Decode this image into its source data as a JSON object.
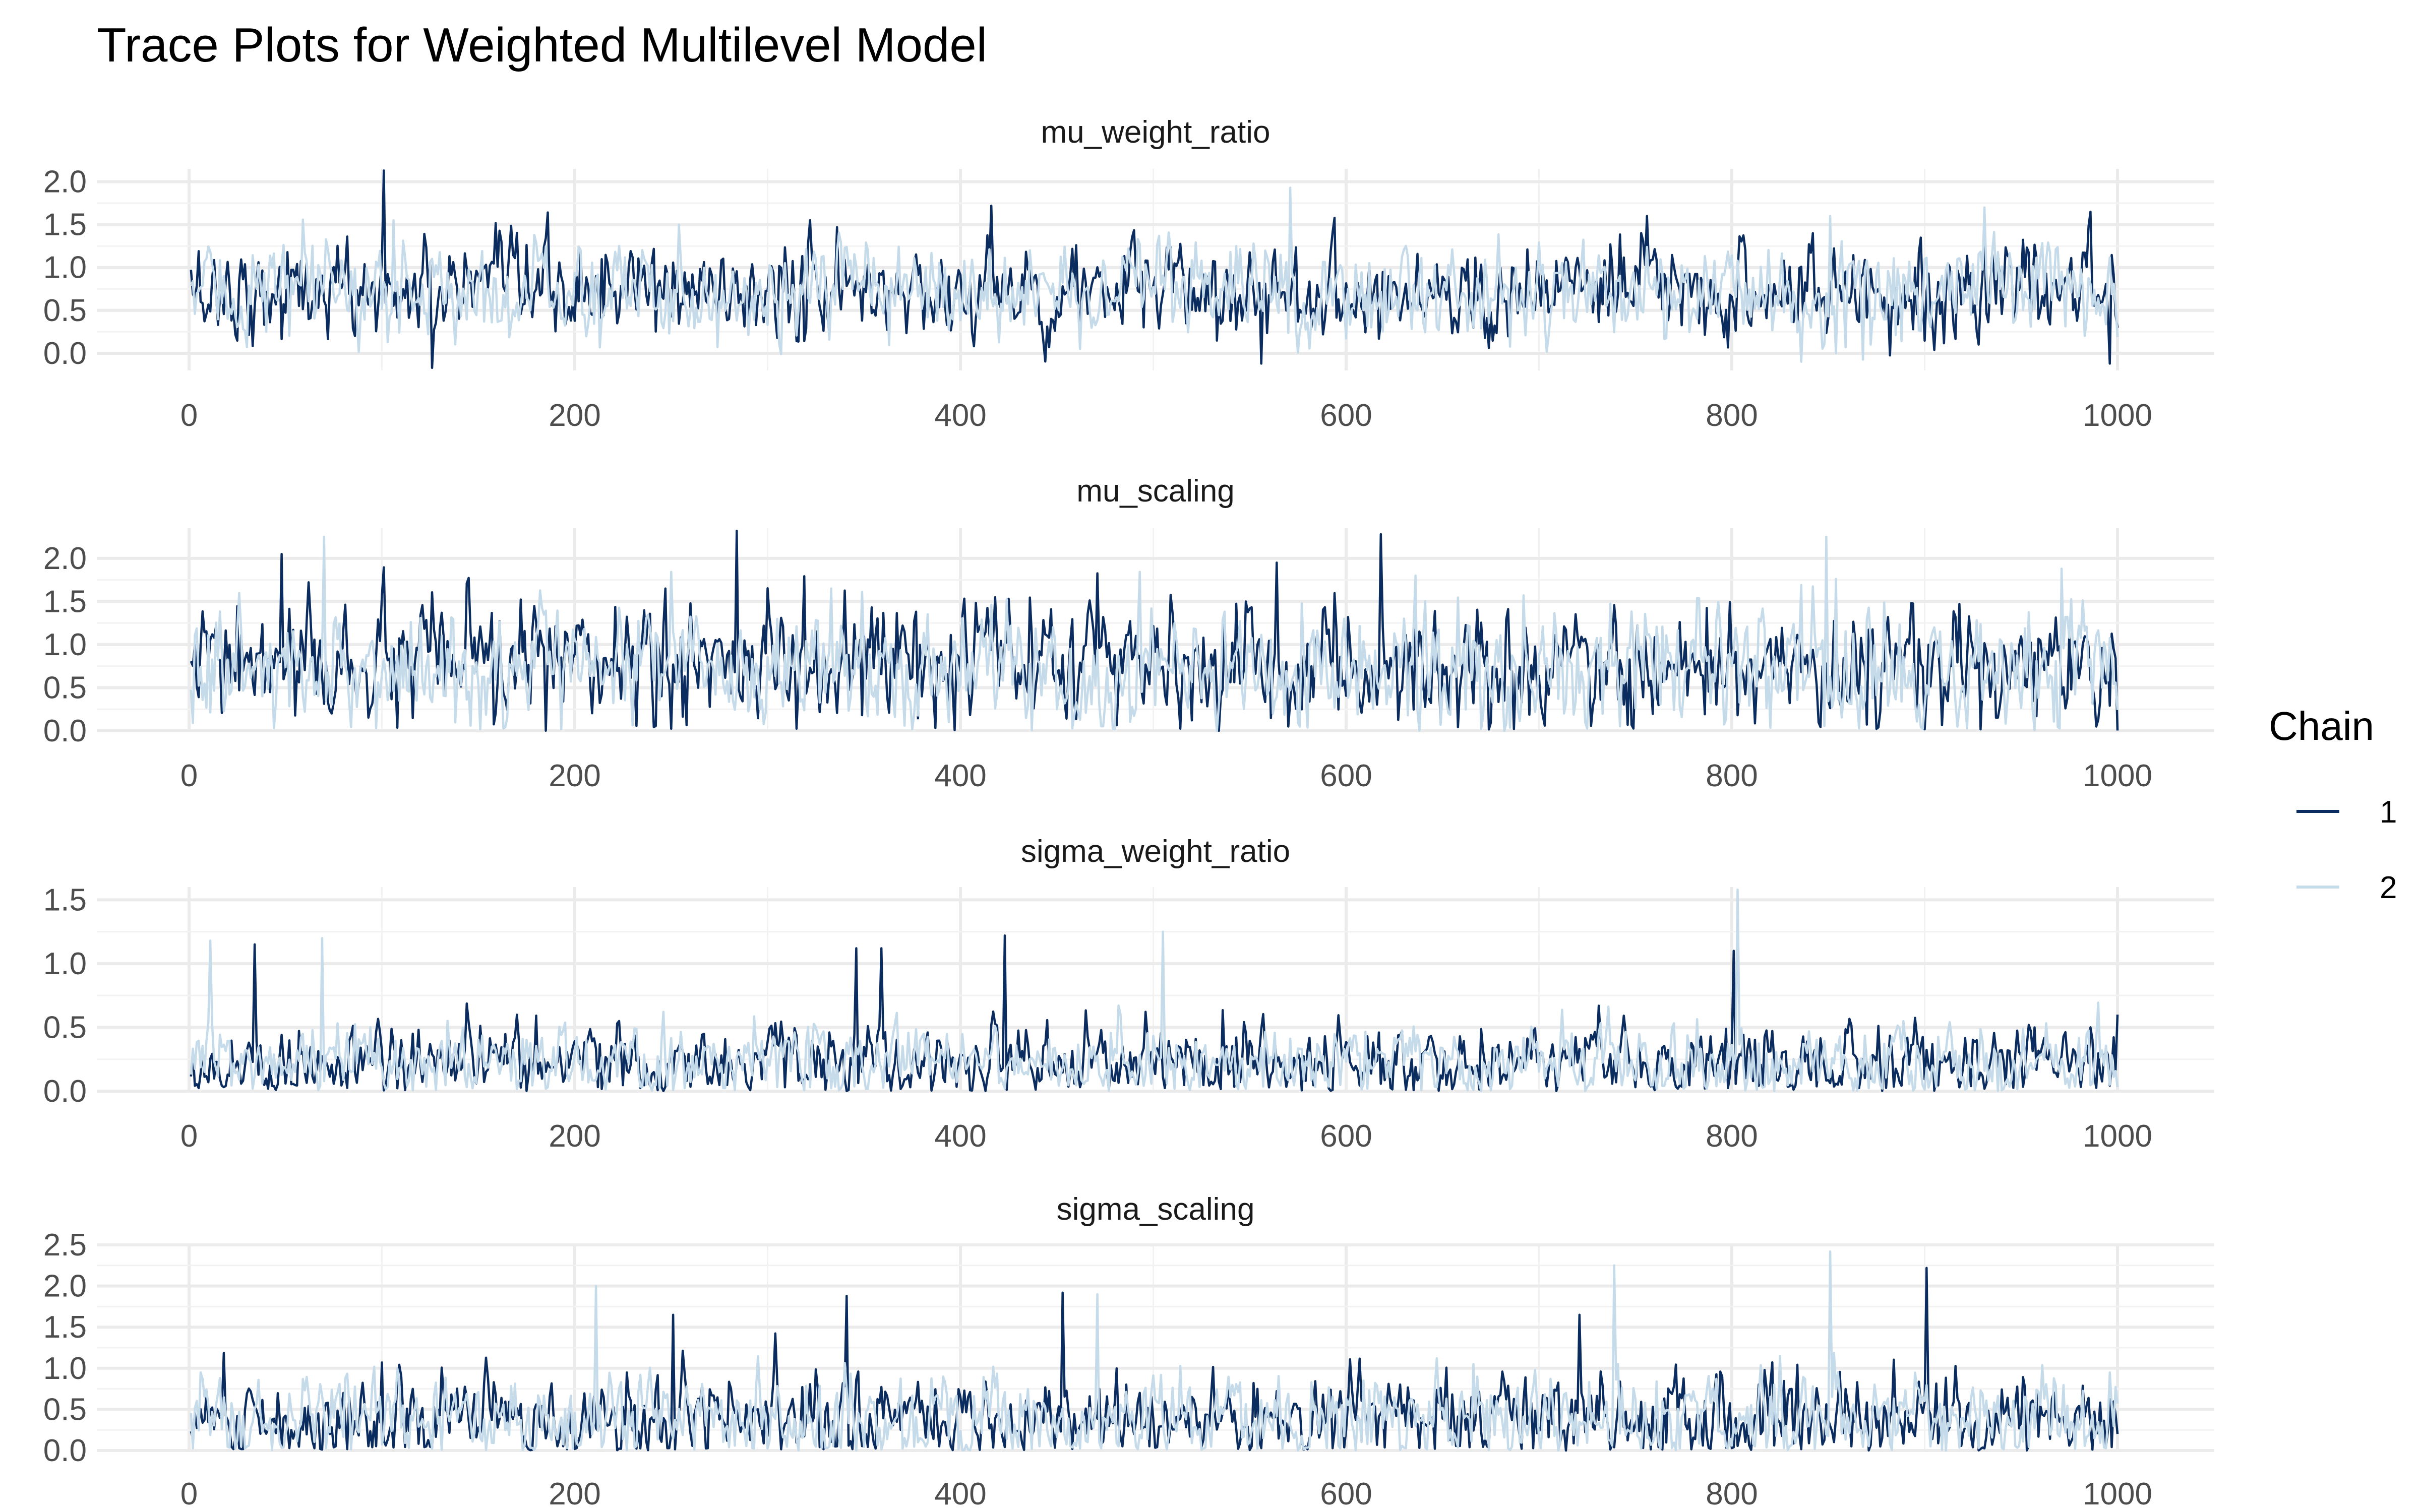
{
  "chart_data": {
    "type": "line",
    "title": "Trace Plots for Weighted Multilevel Model",
    "legend": {
      "title": "Chain",
      "placement": "right",
      "entries": [
        {
          "label": "1",
          "color": "#0b2c5e"
        },
        {
          "label": "2",
          "color": "#c6dbea"
        }
      ]
    },
    "grid": true,
    "xlim": [
      0,
      1000
    ],
    "x_ticks": [
      "0",
      "200",
      "400",
      "600",
      "800",
      "1000"
    ],
    "x_tick_values": [
      0,
      200,
      400,
      600,
      800,
      1000
    ],
    "n_iterations": 1000,
    "panels": [
      {
        "name": "mu_weight_ratio",
        "ylim": [
          -0.2,
          2.15
        ],
        "y_ticks": [
          "0.0",
          "0.5",
          "1.0",
          "1.5",
          "2.0"
        ],
        "y_tick_values": [
          0,
          0.5,
          1,
          1.5,
          2
        ],
        "series": [
          {
            "name": "1",
            "color": "#0b2c5e",
            "mean": 0.72,
            "sd": 0.28,
            "min": -0.17,
            "max": 2.13,
            "spikes": [
              [
                100,
                2.13
              ],
              [
                415,
                1.72
              ],
              [
                755,
                1.6
              ],
              [
                985,
                1.65
              ],
              [
                125,
                -0.17
              ],
              [
                555,
                -0.12
              ],
              [
                995,
                -0.12
              ]
            ]
          },
          {
            "name": "2",
            "color": "#c6dbea",
            "mean": 0.72,
            "sd": 0.28,
            "min": -0.1,
            "max": 1.93,
            "spikes": [
              [
                570,
                1.93
              ],
              [
                930,
                1.7
              ],
              [
                850,
                1.6
              ],
              [
                105,
                1.55
              ]
            ]
          }
        ]
      },
      {
        "name": "mu_scaling",
        "ylim": [
          0,
          2.35
        ],
        "y_ticks": [
          "0.0",
          "0.5",
          "1.0",
          "1.5",
          "2.0"
        ],
        "y_tick_values": [
          0,
          0.5,
          1,
          1.5,
          2
        ],
        "series": [
          {
            "name": "1",
            "color": "#0b2c5e",
            "mean": 0.75,
            "sd": 0.35,
            "min": 0,
            "max": 2.32,
            "spikes": [
              [
                283,
                2.32
              ],
              [
                617,
                2.28
              ],
              [
                47,
                2.05
              ],
              [
                563,
                1.95
              ]
            ]
          },
          {
            "name": "2",
            "color": "#c6dbea",
            "mean": 0.72,
            "sd": 0.35,
            "min": 0,
            "max": 2.25,
            "spikes": [
              [
                69,
                2.25
              ],
              [
                848,
                2.25
              ],
              [
                970,
                1.88
              ],
              [
                635,
                1.8
              ]
            ]
          }
        ]
      },
      {
        "name": "sigma_weight_ratio",
        "ylim": [
          0,
          1.6
        ],
        "y_ticks": [
          "0.0",
          "0.5",
          "1.0",
          "1.5"
        ],
        "y_tick_values": [
          0,
          0.5,
          1,
          1.5
        ],
        "series": [
          {
            "name": "1",
            "color": "#0b2c5e",
            "mean": 0.22,
            "sd": 0.15,
            "min": 0,
            "max": 1.22,
            "spikes": [
              [
                422,
                1.22
              ],
              [
                33,
                1.15
              ],
              [
                345,
                1.12
              ],
              [
                358,
                1.12
              ],
              [
                800,
                1.1
              ],
              [
                1000,
                0.6
              ]
            ]
          },
          {
            "name": "2",
            "color": "#c6dbea",
            "mean": 0.22,
            "sd": 0.15,
            "min": 0,
            "max": 1.58,
            "spikes": [
              [
                802,
                1.58
              ],
              [
                10,
                1.18
              ],
              [
                68,
                1.2
              ],
              [
                504,
                1.25
              ]
            ]
          }
        ]
      },
      {
        "name": "sigma_scaling",
        "ylim": [
          0,
          2.5
        ],
        "y_ticks": [
          "0.0",
          "0.5",
          "1.0",
          "1.5",
          "2.0",
          "2.5"
        ],
        "y_tick_values": [
          0,
          0.5,
          1,
          1.5,
          2,
          2.5
        ],
        "series": [
          {
            "name": "1",
            "color": "#0b2c5e",
            "mean": 0.38,
            "sd": 0.28,
            "min": 0,
            "max": 2.22,
            "spikes": [
              [
                900,
                2.22
              ],
              [
                452,
                1.92
              ],
              [
                340,
                1.88
              ],
              [
                720,
                1.65
              ],
              [
                250,
                1.65
              ]
            ]
          },
          {
            "name": "2",
            "color": "#c6dbea",
            "mean": 0.38,
            "sd": 0.28,
            "min": 0,
            "max": 2.42,
            "spikes": [
              [
                850,
                2.42
              ],
              [
                738,
                2.25
              ],
              [
                210,
                2.0
              ],
              [
                470,
                1.9
              ]
            ]
          }
        ]
      }
    ]
  }
}
